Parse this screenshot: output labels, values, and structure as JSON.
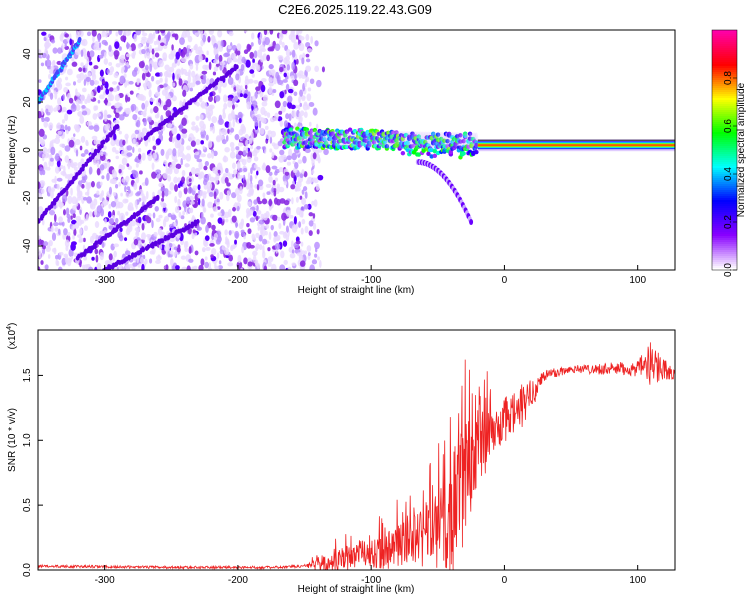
{
  "figure": {
    "title": "C2E6.2025.119.22.43.G09"
  },
  "chart_data": [
    {
      "type": "heatmap",
      "xlabel": "Height of straight line (km)",
      "ylabel": "Frequency (Hz)",
      "xlim": [
        -350,
        128
      ],
      "ylim": [
        -50,
        50
      ],
      "xticks": [
        -300,
        -200,
        -100,
        0,
        100
      ],
      "yticks": [
        -40,
        -20,
        0,
        20,
        40
      ],
      "colorbar": {
        "label": "Normalized spectral amplitude",
        "range": [
          0,
          1
        ],
        "ticks": [
          0.0,
          0.2,
          0.4,
          0.6,
          0.8
        ],
        "tick_labels": [
          "0.0",
          "0.2",
          "0.4",
          "0.6",
          "0.8"
        ],
        "colormap": [
          "#ffffff",
          "#8800ff",
          "#0000ff",
          "#00ffff",
          "#00ff00",
          "#ffff00",
          "#ff0000",
          "#ff00aa"
        ]
      },
      "features": [
        {
          "name": "main-signal-band",
          "x_range": [
            -165,
            128
          ],
          "freq_center": 5,
          "freq_center_end": 2,
          "amplitude": 0.9
        },
        {
          "name": "diffuse-noise",
          "x_range": [
            -350,
            -140
          ],
          "freq_range": [
            -50,
            50
          ],
          "amplitude": 0.2
        },
        {
          "name": "descending-branch",
          "x_range": [
            -65,
            -25
          ],
          "freq_start": -5,
          "freq_end": -30,
          "amplitude": 0.25
        }
      ],
      "grid": false,
      "legend": "colorbar-right"
    },
    {
      "type": "line",
      "xlabel": "Height of straight line (km)",
      "ylabel": "SNR (10 * v/v)",
      "multiplier_label": "(x10",
      "multiplier_exp": "4",
      "xlim": [
        -350,
        128
      ],
      "ylim": [
        0,
        1.85
      ],
      "xticks": [
        -300,
        -200,
        -100,
        0,
        100
      ],
      "yticks": [
        0.0,
        0.5,
        1.0,
        1.5
      ],
      "ytick_labels": [
        "0.0",
        "0.5",
        "1.0",
        "1.5"
      ],
      "color": "#ee2222",
      "series": [
        {
          "points": [
            [
              -350,
              0.03
            ],
            [
              -300,
              0.025
            ],
            [
              -250,
              0.02
            ],
            [
              -200,
              0.02
            ],
            [
              -170,
              0.02
            ],
            [
              -150,
              0.03
            ],
            [
              -130,
              0.05
            ],
            [
              -110,
              0.12
            ],
            [
              -90,
              0.15
            ],
            [
              -70,
              0.22
            ],
            [
              -50,
              0.3
            ],
            [
              -40,
              0.4
            ],
            [
              -30,
              0.7
            ],
            [
              -20,
              0.95
            ],
            [
              -12,
              1.02
            ],
            [
              0,
              1.15
            ],
            [
              10,
              1.22
            ],
            [
              20,
              1.35
            ],
            [
              30,
              1.5
            ],
            [
              50,
              1.55
            ],
            [
              80,
              1.55
            ],
            [
              100,
              1.55
            ],
            [
              112,
              1.6
            ],
            [
              128,
              1.5
            ]
          ],
          "noise": [
            [
              -350,
              0.01
            ],
            [
              -150,
              0.01
            ],
            [
              -130,
              0.08
            ],
            [
              -100,
              0.12
            ],
            [
              -70,
              0.2
            ],
            [
              -50,
              0.3
            ],
            [
              -35,
              0.5
            ],
            [
              -20,
              0.45
            ],
            [
              -10,
              0.15
            ],
            [
              10,
              0.2
            ],
            [
              30,
              0.05
            ],
            [
              50,
              0.03
            ],
            [
              100,
              0.06
            ],
            [
              112,
              0.2
            ],
            [
              120,
              0.08
            ],
            [
              128,
              0.04
            ]
          ]
        }
      ],
      "grid": false
    }
  ]
}
